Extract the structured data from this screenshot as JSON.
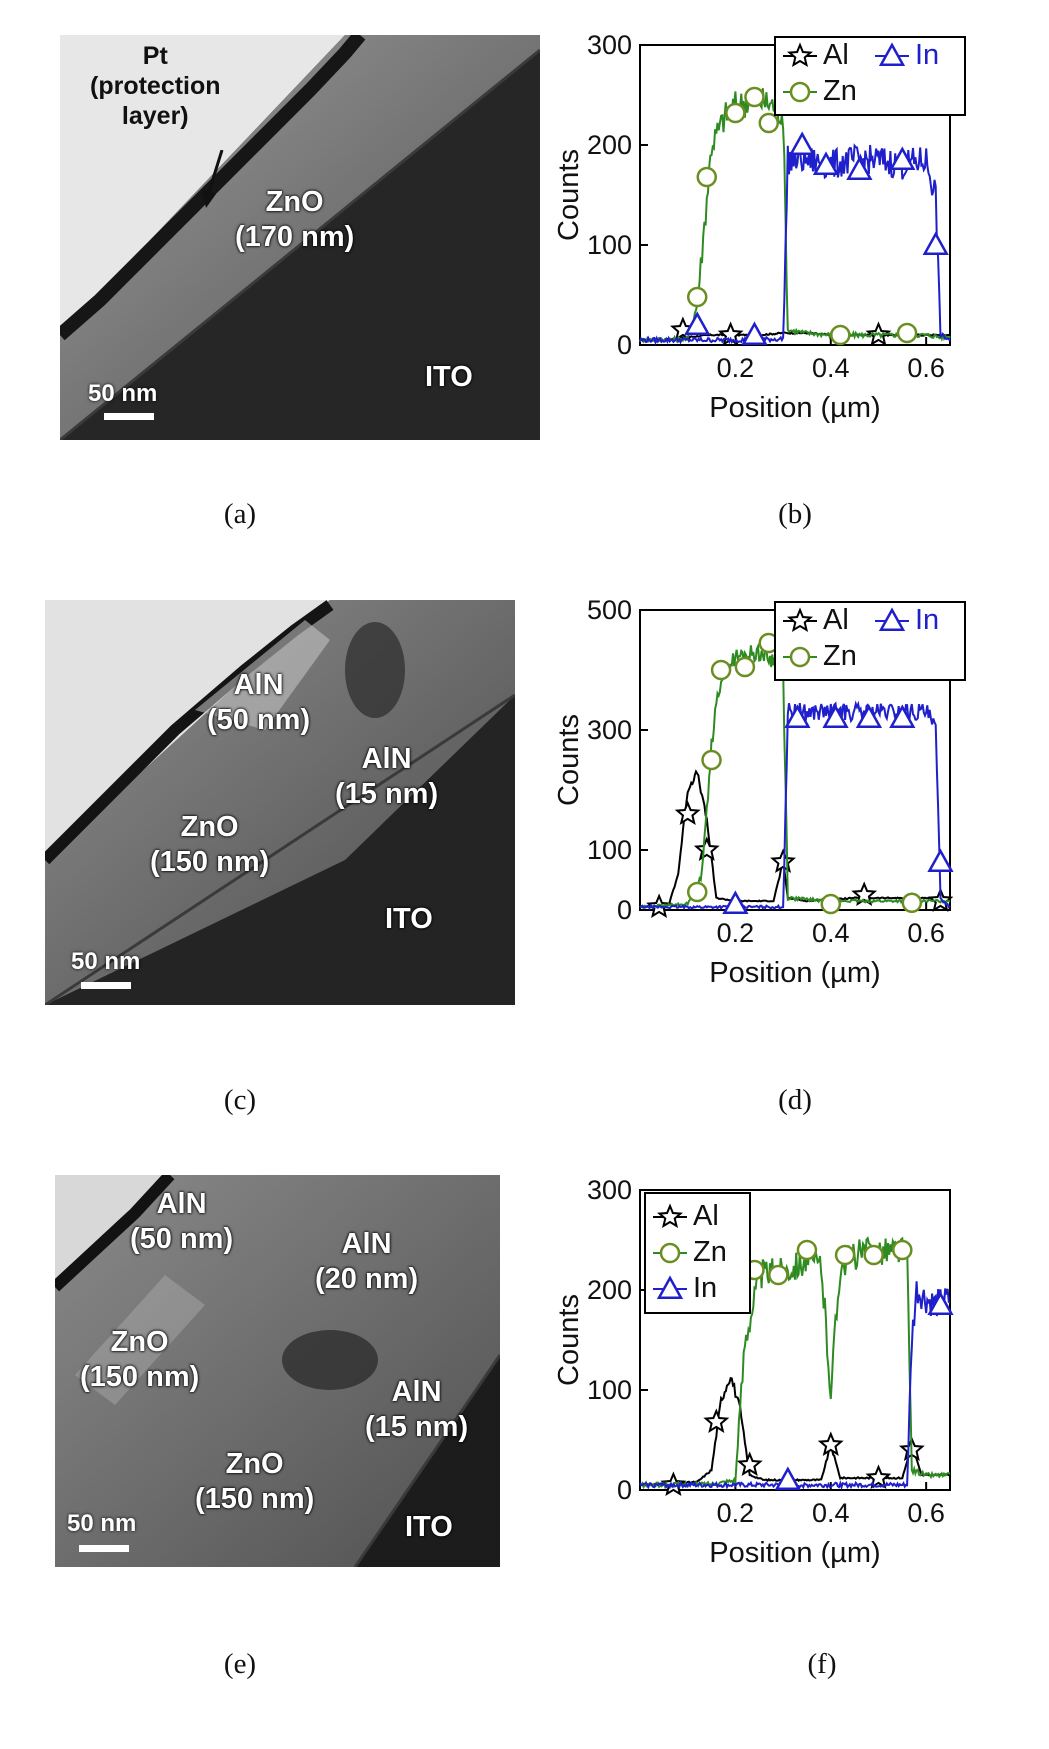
{
  "panels": [
    {
      "id": "a",
      "caption": "(a)",
      "labels": [
        {
          "key": "pt",
          "text": "Pt\n(protection\nlayer)"
        },
        {
          "key": "zno",
          "text": "ZnO\n(170 nm)"
        },
        {
          "key": "ito",
          "text": "ITO"
        }
      ],
      "scale_bar": "50 nm"
    },
    {
      "id": "c",
      "caption": "(c)",
      "labels": [
        {
          "key": "aln1",
          "text": "AlN\n(50 nm)"
        },
        {
          "key": "aln2",
          "text": "AlN\n(15 nm)"
        },
        {
          "key": "zno",
          "text": "ZnO\n(150 nm)"
        },
        {
          "key": "ito",
          "text": "ITO"
        }
      ],
      "scale_bar": "50 nm"
    },
    {
      "id": "e",
      "caption": "(e)",
      "labels": [
        {
          "key": "aln1",
          "text": "AlN\n(50 nm)"
        },
        {
          "key": "aln2",
          "text": "AlN\n(20 nm)"
        },
        {
          "key": "zno1",
          "text": "ZnO\n(150 nm)"
        },
        {
          "key": "aln3",
          "text": "AlN\n(15 nm)"
        },
        {
          "key": "zno2",
          "text": "ZnO\n(150 nm)"
        },
        {
          "key": "ito",
          "text": "ITO"
        }
      ],
      "scale_bar": "50 nm"
    }
  ],
  "chart_data": [
    {
      "id": "b",
      "caption": "(b)",
      "type": "line",
      "xlabel": "Position (µm)",
      "ylabel": "Counts",
      "xlim": [
        0,
        0.65
      ],
      "ylim": [
        0,
        300
      ],
      "xticks": [
        0.2,
        0.4,
        0.6
      ],
      "yticks": [
        0,
        100,
        200,
        300
      ],
      "legend": {
        "placement": "top-right",
        "entries": [
          "Al",
          "In",
          "Zn"
        ]
      },
      "series": [
        {
          "name": "Al",
          "color": "#000000",
          "marker": "star",
          "x": [
            0.0,
            0.05,
            0.1,
            0.15,
            0.2,
            0.25,
            0.3,
            0.35,
            0.4,
            0.45,
            0.5,
            0.55,
            0.6,
            0.62,
            0.65
          ],
          "y": [
            5,
            5,
            8,
            10,
            10,
            10,
            12,
            12,
            10,
            10,
            10,
            10,
            10,
            10,
            10
          ],
          "markers_x": [
            0.09,
            0.19,
            0.5
          ],
          "markers_y": [
            15,
            10,
            10
          ]
        },
        {
          "name": "Zn",
          "color": "#2e8b22",
          "marker": "circle",
          "x": [
            0.0,
            0.1,
            0.12,
            0.15,
            0.18,
            0.2,
            0.25,
            0.28,
            0.3,
            0.31,
            0.35,
            0.4,
            0.5,
            0.6,
            0.63,
            0.65
          ],
          "y": [
            5,
            6,
            40,
            200,
            230,
            240,
            245,
            240,
            230,
            15,
            12,
            10,
            10,
            10,
            8,
            8
          ],
          "markers_x": [
            0.12,
            0.14,
            0.2,
            0.24,
            0.27,
            0.42,
            0.56
          ],
          "markers_y": [
            48,
            168,
            232,
            248,
            222,
            10,
            12
          ]
        },
        {
          "name": "In",
          "color": "#1f1fcc",
          "marker": "triangle",
          "x": [
            0.0,
            0.1,
            0.2,
            0.3,
            0.31,
            0.35,
            0.4,
            0.45,
            0.5,
            0.55,
            0.6,
            0.62,
            0.63,
            0.65
          ],
          "y": [
            5,
            5,
            5,
            6,
            185,
            185,
            180,
            185,
            185,
            180,
            185,
            150,
            10,
            5
          ],
          "markers_x": [
            0.12,
            0.24,
            0.34,
            0.39,
            0.46,
            0.55,
            0.62
          ],
          "markers_y": [
            20,
            10,
            200,
            180,
            175,
            185,
            100
          ]
        }
      ]
    },
    {
      "id": "d",
      "caption": "(d)",
      "type": "line",
      "xlabel": "Position (µm)",
      "ylabel": "Counts",
      "xlim": [
        0,
        0.65
      ],
      "ylim": [
        0,
        500
      ],
      "xticks": [
        0.2,
        0.4,
        0.6
      ],
      "yticks": [
        0,
        100,
        300,
        500
      ],
      "legend": {
        "placement": "top-right",
        "entries": [
          "Al",
          "In",
          "Zn"
        ]
      },
      "series": [
        {
          "name": "Al",
          "color": "#000000",
          "marker": "star",
          "x": [
            0.0,
            0.06,
            0.08,
            0.1,
            0.12,
            0.14,
            0.16,
            0.2,
            0.28,
            0.3,
            0.31,
            0.35,
            0.45,
            0.55,
            0.65
          ],
          "y": [
            5,
            8,
            60,
            200,
            230,
            150,
            20,
            15,
            15,
            80,
            20,
            15,
            20,
            20,
            20
          ],
          "markers_x": [
            0.04,
            0.1,
            0.14,
            0.3,
            0.47,
            0.63
          ],
          "markers_y": [
            5,
            160,
            100,
            80,
            25,
            15
          ]
        },
        {
          "name": "Zn",
          "color": "#2e8b22",
          "marker": "circle",
          "x": [
            0.0,
            0.1,
            0.13,
            0.15,
            0.17,
            0.2,
            0.25,
            0.29,
            0.3,
            0.31,
            0.4,
            0.5,
            0.6,
            0.65
          ],
          "y": [
            5,
            10,
            60,
            280,
            390,
            420,
            430,
            410,
            400,
            20,
            15,
            15,
            15,
            15
          ],
          "markers_x": [
            0.12,
            0.15,
            0.17,
            0.22,
            0.27,
            0.4,
            0.57
          ],
          "markers_y": [
            30,
            250,
            400,
            405,
            445,
            10,
            12
          ]
        },
        {
          "name": "In",
          "color": "#1f1fcc",
          "marker": "triangle",
          "x": [
            0.0,
            0.1,
            0.2,
            0.3,
            0.31,
            0.35,
            0.45,
            0.55,
            0.6,
            0.62,
            0.63,
            0.65
          ],
          "y": [
            5,
            5,
            5,
            5,
            330,
            330,
            330,
            330,
            330,
            300,
            20,
            5
          ],
          "markers_x": [
            0.2,
            0.33,
            0.41,
            0.48,
            0.55,
            0.63
          ],
          "markers_y": [
            10,
            320,
            320,
            320,
            320,
            80
          ]
        }
      ]
    },
    {
      "id": "f",
      "caption": "(f)",
      "type": "line",
      "xlabel": "Position (µm)",
      "ylabel": "Counts",
      "xlim": [
        0,
        0.65
      ],
      "ylim": [
        0,
        300
      ],
      "xticks": [
        0.2,
        0.4,
        0.6
      ],
      "yticks": [
        0,
        100,
        200,
        300
      ],
      "legend": {
        "placement": "top-left",
        "entries": [
          "Al",
          "Zn",
          "In"
        ]
      },
      "series": [
        {
          "name": "Al",
          "color": "#000000",
          "marker": "star",
          "x": [
            0.0,
            0.12,
            0.15,
            0.17,
            0.19,
            0.21,
            0.23,
            0.26,
            0.38,
            0.4,
            0.42,
            0.5,
            0.55,
            0.57,
            0.59,
            0.65
          ],
          "y": [
            5,
            8,
            20,
            90,
            115,
            80,
            15,
            10,
            10,
            45,
            12,
            12,
            12,
            45,
            15,
            15
          ],
          "markers_x": [
            0.07,
            0.16,
            0.23,
            0.4,
            0.5,
            0.57
          ],
          "markers_y": [
            5,
            68,
            25,
            45,
            12,
            40
          ]
        },
        {
          "name": "Zn",
          "color": "#2e8b22",
          "marker": "circle",
          "x": [
            0.0,
            0.15,
            0.2,
            0.22,
            0.25,
            0.3,
            0.35,
            0.38,
            0.4,
            0.42,
            0.45,
            0.5,
            0.55,
            0.56,
            0.57,
            0.6,
            0.65
          ],
          "y": [
            5,
            6,
            10,
            150,
            215,
            220,
            230,
            225,
            100,
            225,
            235,
            240,
            240,
            230,
            20,
            15,
            15
          ],
          "markers_x": [
            0.24,
            0.29,
            0.35,
            0.43,
            0.49,
            0.55
          ],
          "markers_y": [
            220,
            215,
            240,
            235,
            235,
            240
          ]
        },
        {
          "name": "In",
          "color": "#1f1fcc",
          "marker": "triangle",
          "x": [
            0.0,
            0.2,
            0.3,
            0.4,
            0.5,
            0.56,
            0.57,
            0.58,
            0.6,
            0.62,
            0.65
          ],
          "y": [
            5,
            5,
            5,
            5,
            5,
            5,
            150,
            200,
            190,
            185,
            190
          ],
          "markers_x": [
            0.31,
            0.63
          ],
          "markers_y": [
            10,
            185
          ]
        }
      ]
    }
  ]
}
